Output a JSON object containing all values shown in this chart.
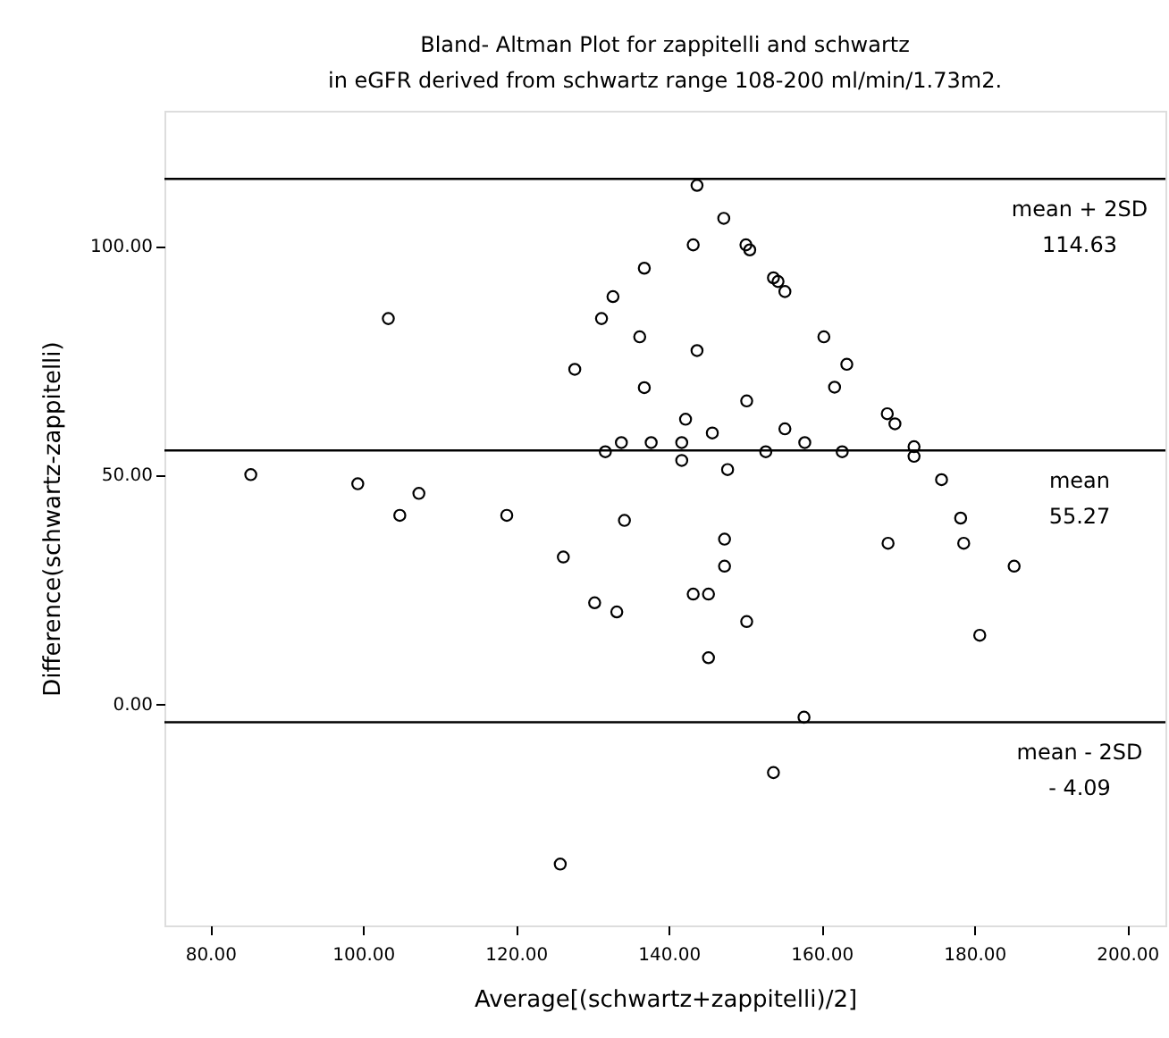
{
  "chart_data": {
    "type": "scatter",
    "title": [
      "Bland- Altman  Plot for zappitelli and schwartz",
      "in eGFR  derived from schwartz  range 108-200  ml/min/1.73m2."
    ],
    "xlabel": "Average[(schwartz+zappitelli)/2]",
    "ylabel": "Difference(schwartz-zappitelli)",
    "x": [
      85.3,
      99.3,
      107.3,
      103.3,
      127.7,
      131.2,
      132.7,
      136.8,
      136.2,
      136.8,
      131.7,
      133.8,
      137.7,
      104.8,
      118.8,
      134.2,
      126.2,
      130.3,
      133.2,
      125.8,
      143.7,
      147.2,
      143.2,
      150.1,
      150.6,
      153.7,
      154.3,
      155.2,
      143.7,
      160.3,
      163.3,
      161.7,
      150.2,
      142.2,
      145.7,
      155.2,
      141.7,
      141.7,
      152.7,
      157.8,
      162.7,
      147.7,
      168.6,
      169.6,
      172.1,
      172.1,
      175.7,
      178.2,
      147.3,
      147.3,
      143.2,
      145.2,
      150.2,
      145.2,
      157.7,
      153.7,
      168.7,
      178.6,
      180.7,
      185.2
    ],
    "series": [
      {
        "color": "#000000",
        "values": [
          50.0,
          48.0,
          45.9,
          84.1,
          73.0,
          84.1,
          88.9,
          95.1,
          80.1,
          69.0,
          55.0,
          57.0,
          57.0,
          41.1,
          41.1,
          40.0,
          32.0,
          22.0,
          20.0,
          -35.1,
          113.2,
          106.0,
          100.2,
          100.2,
          99.1,
          93.0,
          92.2,
          90.0,
          77.1,
          80.1,
          74.1,
          69.1,
          66.1,
          62.1,
          59.1,
          60.0,
          57.0,
          53.1,
          55.0,
          57.0,
          55.0,
          51.1,
          63.3,
          61.1,
          56.1,
          54.0,
          48.9,
          40.5,
          35.9,
          30.0,
          23.9,
          23.9,
          17.9,
          10.0,
          -3.0,
          -15.1,
          35.0,
          35.0,
          14.9,
          30.0
        ]
      }
    ],
    "marker": "circle",
    "xlim": [
      74,
      205
    ],
    "ylim": [
      -48.5,
      129.5
    ],
    "xticks": [
      {
        "value": 80,
        "label": "80.00"
      },
      {
        "value": 100,
        "label": "100.00"
      },
      {
        "value": 120,
        "label": "120.00"
      },
      {
        "value": 140,
        "label": "140.00"
      },
      {
        "value": 160,
        "label": "160.00"
      },
      {
        "value": 180,
        "label": "180.00"
      },
      {
        "value": 200,
        "label": "200.00"
      }
    ],
    "yticks": [
      {
        "value": 0,
        "label": "0.00"
      },
      {
        "value": 50,
        "label": "50.00"
      },
      {
        "value": 100,
        "label": "100.00"
      }
    ],
    "ref_lines": [
      {
        "axis": "y",
        "value": 114.63,
        "label": "mean + 2SD\n114.63"
      },
      {
        "axis": "y",
        "value": 55.27,
        "label": "mean\n55.27"
      },
      {
        "axis": "y",
        "value": -4.09,
        "label": "mean - 2SD\n- 4.09"
      }
    ],
    "grid": false
  }
}
